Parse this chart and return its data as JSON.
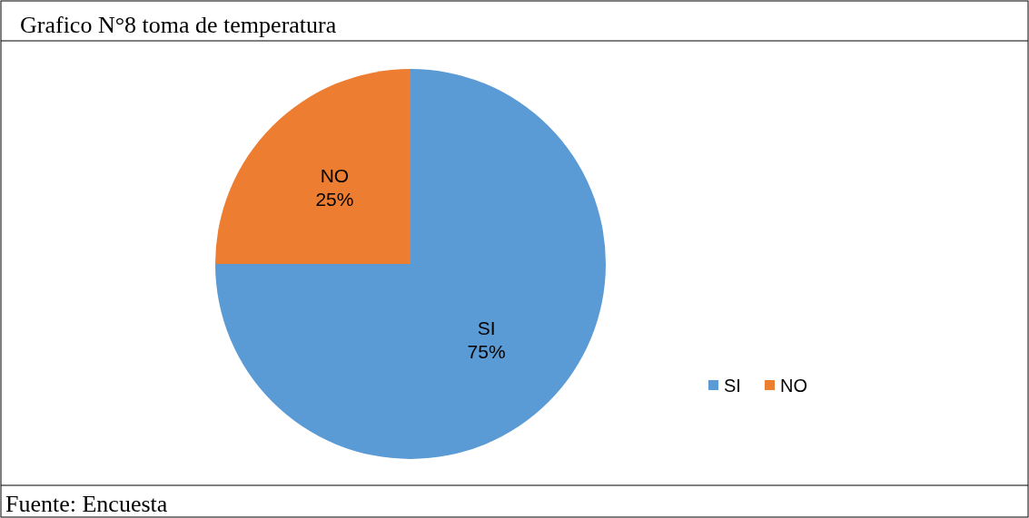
{
  "chart_data": {
    "type": "pie",
    "title": "Grafico N°8 toma de temperatura",
    "categories": [
      "SI",
      "NO"
    ],
    "values": [
      75,
      25
    ],
    "colors": [
      "#5b9bd5",
      "#ed7d31"
    ],
    "value_labels": [
      "75%",
      "25%"
    ],
    "legend": "right",
    "annotations": [
      "Fuente: Encuesta"
    ]
  }
}
